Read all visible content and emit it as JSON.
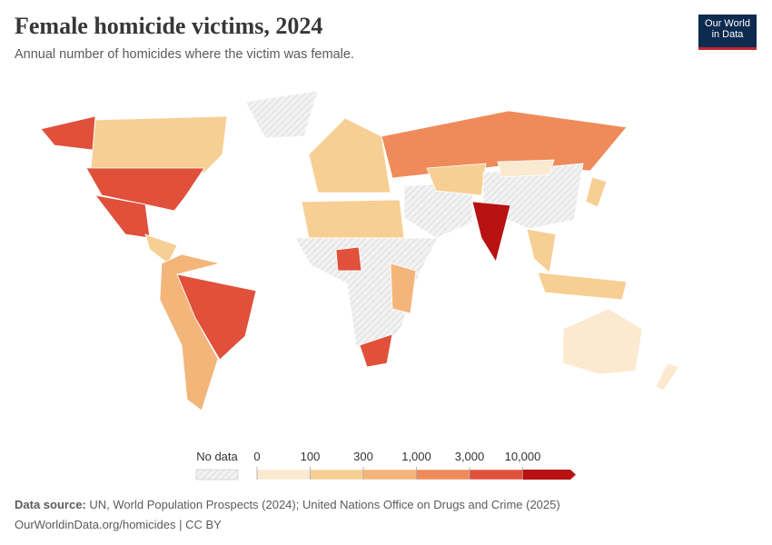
{
  "header": {
    "title": "Female homicide victims, 2024",
    "subtitle": "Annual number of homicides where the victim was female.",
    "logo": [
      "Our World",
      "in Data"
    ]
  },
  "legend": {
    "no_data_label": "No data",
    "ticks": [
      0,
      100,
      300,
      {
        "value": 1000,
        "label": "1,000"
      },
      {
        "value": 3000,
        "label": "3,000"
      },
      {
        "value": 10000,
        "label": "10,000"
      }
    ],
    "colors": [
      "#fbe9d0",
      "#f7cf94",
      "#f4b57a",
      "#ef8b5a",
      "#e0503b",
      "#b81212"
    ]
  },
  "footer": {
    "source_label": "Data source:",
    "source": "UN, World Population Prospects (2024); United Nations Office on Drugs and Crime (2025)",
    "url": "OurWorldinData.org/homicides | CC BY"
  }
}
